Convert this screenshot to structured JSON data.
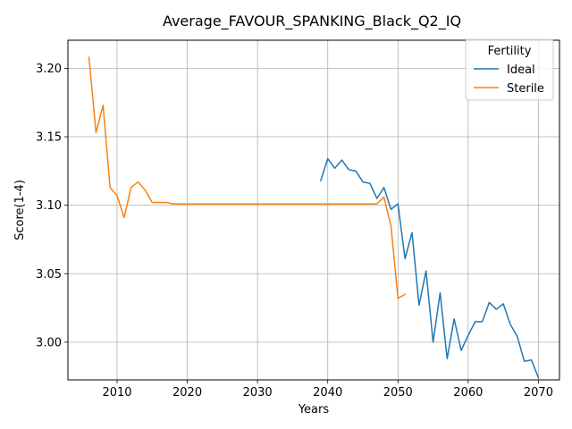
{
  "chart_data": {
    "type": "line",
    "title": "Average_FAVOUR_SPANKING_Black_Q2_IQ",
    "xlabel": "Years",
    "ylabel": "Score(1-4)",
    "xlim": [
      2003,
      2073
    ],
    "ylim": [
      2.9725,
      3.2205
    ],
    "xticks": [
      2010,
      2020,
      2030,
      2040,
      2050,
      2060,
      2070
    ],
    "yticks": [
      3.0,
      3.05,
      3.1,
      3.15,
      3.2
    ],
    "xtick_labels": [
      "2010",
      "2020",
      "2030",
      "2040",
      "2050",
      "2060",
      "2070"
    ],
    "ytick_labels": [
      "3.00",
      "3.05",
      "3.10",
      "3.15",
      "3.20"
    ],
    "grid": true,
    "legend": {
      "title": "Fertility",
      "placement": "top-right"
    },
    "series": [
      {
        "name": "Ideal",
        "color": "#1f77b4",
        "x": [
          2039,
          2040,
          2041,
          2042,
          2043,
          2044,
          2045,
          2046,
          2047,
          2048,
          2049,
          2050,
          2051,
          2052,
          2053,
          2054,
          2055,
          2056,
          2057,
          2058,
          2059,
          2060,
          2061,
          2062,
          2063,
          2064,
          2065,
          2066,
          2067,
          2068,
          2069,
          2070
        ],
        "y": [
          3.118,
          3.134,
          3.127,
          3.133,
          3.126,
          3.125,
          3.117,
          3.116,
          3.105,
          3.113,
          3.097,
          3.101,
          3.061,
          3.08,
          3.027,
          3.052,
          3.0,
          3.036,
          2.988,
          3.017,
          2.994,
          3.005,
          3.015,
          3.015,
          3.029,
          3.024,
          3.028,
          3.013,
          3.004,
          2.986,
          2.987,
          2.974
        ]
      },
      {
        "name": "Sterile",
        "color": "#ff7f0e",
        "x": [
          2006,
          2007,
          2008,
          2009,
          2010,
          2011,
          2012,
          2013,
          2014,
          2015,
          2016,
          2017,
          2018,
          2019,
          2020,
          2025,
          2030,
          2035,
          2040,
          2045,
          2046,
          2047,
          2048,
          2049,
          2050,
          2051
        ],
        "y": [
          3.208,
          3.153,
          3.173,
          3.113,
          3.107,
          3.091,
          3.113,
          3.117,
          3.111,
          3.102,
          3.102,
          3.102,
          3.101,
          3.101,
          3.101,
          3.101,
          3.101,
          3.101,
          3.101,
          3.101,
          3.101,
          3.101,
          3.106,
          3.085,
          3.032,
          3.035
        ]
      }
    ]
  }
}
